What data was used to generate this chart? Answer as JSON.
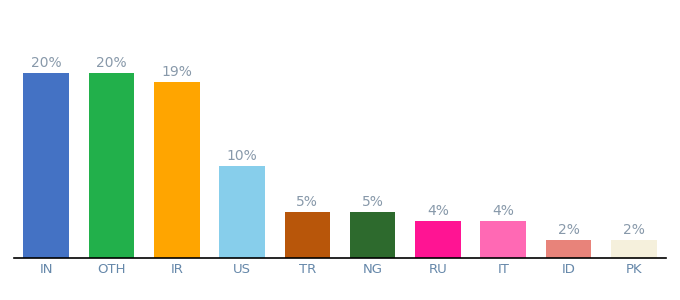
{
  "categories": [
    "IN",
    "OTH",
    "IR",
    "US",
    "TR",
    "NG",
    "RU",
    "IT",
    "ID",
    "PK"
  ],
  "values": [
    20,
    20,
    19,
    10,
    5,
    5,
    4,
    4,
    2,
    2
  ],
  "bar_colors": [
    "#4472C4",
    "#22B04B",
    "#FFA500",
    "#87CEEB",
    "#B8560A",
    "#2D6A2D",
    "#FF1493",
    "#FF69B4",
    "#E8837A",
    "#F5F0DC"
  ],
  "label_color": "#8899AA",
  "tick_color": "#6688AA",
  "ylim": [
    0,
    24
  ],
  "bar_width": 0.7,
  "label_fontsize": 10,
  "tick_fontsize": 9.5,
  "background_color": "#ffffff"
}
